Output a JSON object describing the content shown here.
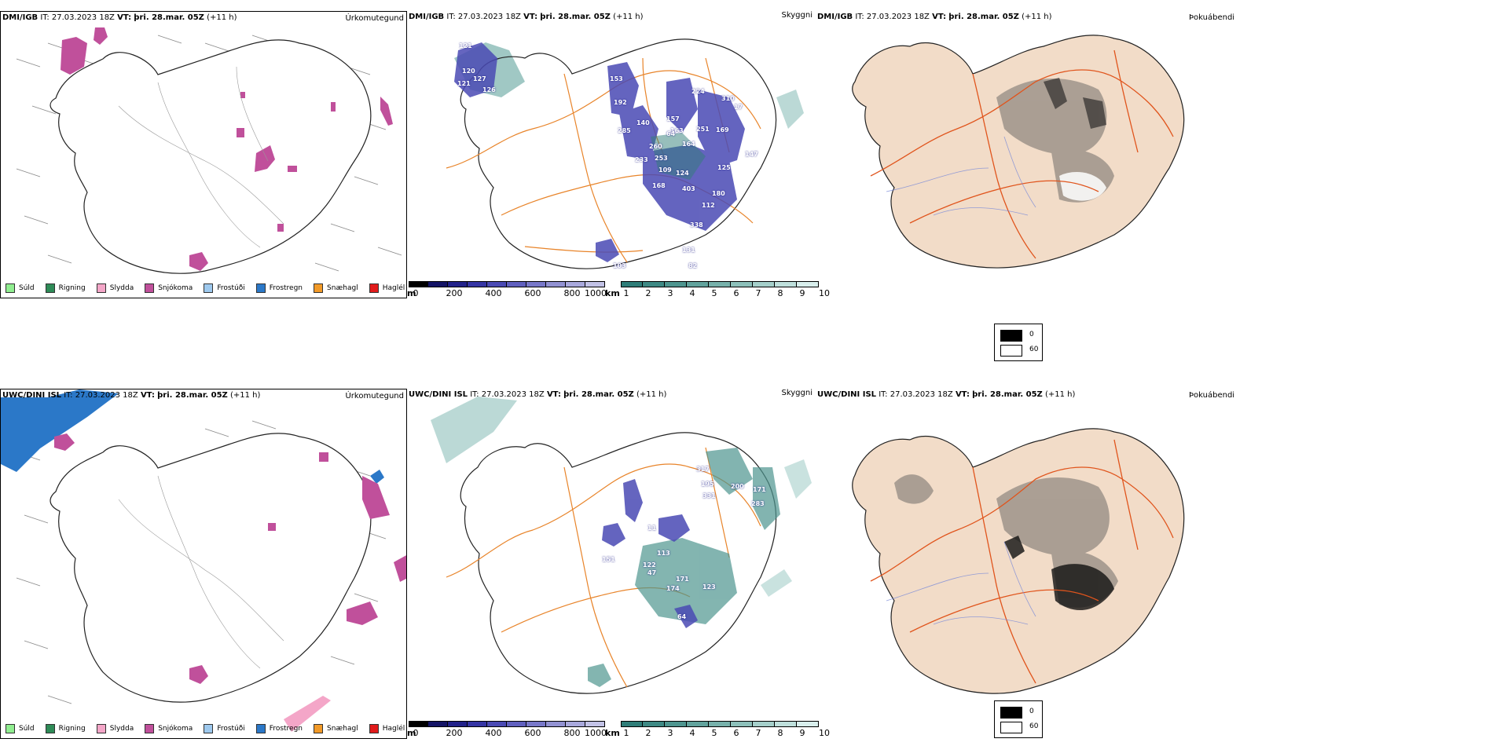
{
  "colors": {
    "precip": {
      "Súld": "#90ee90",
      "Rigning": "#2e8b57",
      "Slydda": "#f4a6c8",
      "Snjókoma": "#c0509b",
      "Frostúði": "#9ec9ee",
      "Frostregn": "#2b78c8",
      "Snæhagl": "#f29a28",
      "Haglél": "#e11b1b"
    },
    "height_scale": [
      "#000000",
      "#141466",
      "#22228a",
      "#3535a4",
      "#4a4ab4",
      "#6060bf",
      "#7878c9",
      "#9292d2",
      "#a9a9dc",
      "#c2c2e6"
    ],
    "visibility_scale": [
      "#2f7d78",
      "#3e8984",
      "#4e958f",
      "#62a39d",
      "#77b1ab",
      "#8dc0ba",
      "#a5cfca",
      "#bedfdb",
      "#d8eeec"
    ],
    "fog_land": "#f2dcc8",
    "roads": "#e05a20"
  },
  "rows": [
    {
      "id": "dmi",
      "left": {
        "model": "DMI/IGB",
        "it_label": "IT:",
        "it_value": "27.03.2023 18Z",
        "vt_label": "VT:",
        "vt_value": "þri. 28.mar. 05Z",
        "lead": "(+11 h)",
        "title": "Úrkomutegund"
      },
      "middle": {
        "header": {
          "model": "DMI/IGB",
          "it_label": "IT:",
          "it_value": "27.03.2023 18Z",
          "vt_label": "VT:",
          "vt_value": "þri. 28.mar. 05Z",
          "lead": "(+11 h)"
        },
        "title": "Skyggni",
        "cloud_labels": [
          "121",
          "120",
          "121",
          "127",
          "126",
          "153",
          "192",
          "285",
          "140",
          "157",
          "163",
          "260",
          "253",
          "224",
          "310",
          "251",
          "169",
          "164",
          "233",
          "109",
          "124",
          "168",
          "403",
          "180",
          "112",
          "338",
          "131",
          "82",
          "64",
          "17",
          "147",
          "103",
          "125"
        ]
      },
      "right": {
        "model": "DMI/IGB",
        "it_label": "IT:",
        "it_value": "27.03.2023 18Z",
        "vt_label": "VT:",
        "vt_value": "þri. 28.mar. 05Z",
        "lead": "(+11 h)",
        "title": "Þokuábendi"
      }
    },
    {
      "id": "uwc",
      "left": {
        "model": "UWC/DINI ISL",
        "it_label": "IT:",
        "it_value": "27.03.2023 18Z",
        "vt_label": "VT:",
        "vt_value": "þri. 28.mar. 05Z",
        "lead": "(+11 h)",
        "title": "Úrkomutegund"
      },
      "middle": {
        "header": {
          "model": "UWC/DINI ISL",
          "it_label": "IT:",
          "it_value": "27.03.2023 18Z",
          "vt_label": "VT:",
          "vt_value": "þri. 28.mar. 05Z",
          "lead": "(+11 h)"
        },
        "title": "Skyggni",
        "cloud_labels": [
          "317",
          "195",
          "331",
          "200",
          "171",
          "283",
          "11",
          "113",
          "122",
          "151",
          "47",
          "171",
          "174",
          "123",
          "64"
        ]
      },
      "right": {
        "model": "UWC/DINI ISL",
        "it_label": "IT:",
        "it_value": "27.03.2023 18Z",
        "vt_label": "VT:",
        "vt_value": "þri. 28.mar. 05Z",
        "lead": "(+11 h)",
        "title": "Þokuábendi"
      }
    }
  ],
  "precip_legend": [
    "Súld",
    "Rigning",
    "Slydda",
    "Snjókoma",
    "Frostúði",
    "Frostregn",
    "Snæhagl",
    "Haglél"
  ],
  "height_bar": {
    "unit": "m",
    "ticks": [
      "0",
      "200",
      "400",
      "600",
      "800",
      "1000"
    ]
  },
  "visibility_bar": {
    "unit": "km",
    "ticks": [
      "1",
      "2",
      "3",
      "4",
      "5",
      "6",
      "7",
      "8",
      "9",
      "10"
    ]
  },
  "fog_key": {
    "low": "0",
    "high": "60"
  }
}
